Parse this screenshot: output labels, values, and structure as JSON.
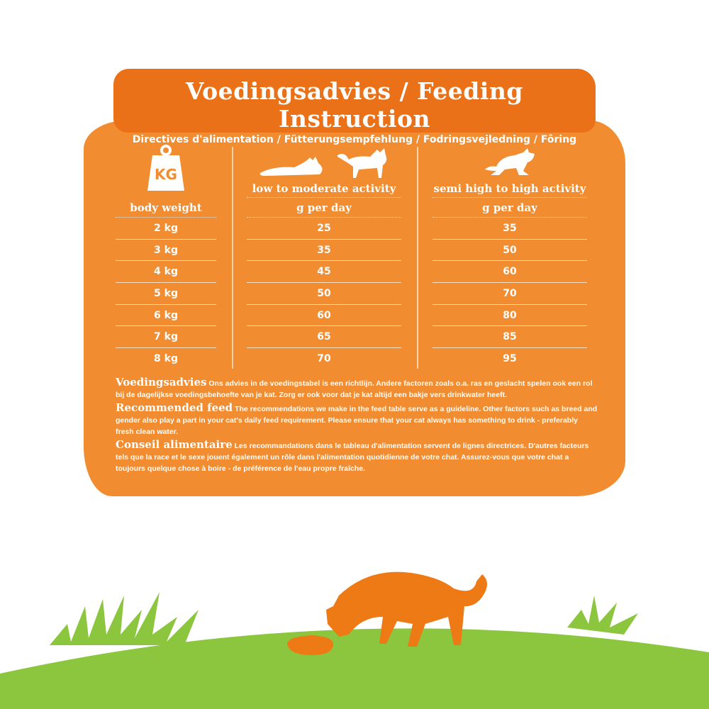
{
  "header": {
    "title": "Voedingsadvies / Feeding Instruction",
    "subtitle": "Directives d'alimentation / Fütterungsempfehlung / Fodringsvejledning / Fôring"
  },
  "table": {
    "weight_icon_label": "KG",
    "columns": [
      {
        "activity": "",
        "header": "body weight",
        "values": [
          "2 kg",
          "3 kg",
          "4 kg",
          "5 kg",
          "6 kg",
          "7 kg",
          "8 kg"
        ]
      },
      {
        "activity": "low to moderate activity",
        "header": "g per day",
        "values": [
          "25",
          "35",
          "45",
          "50",
          "60",
          "65",
          "70"
        ]
      },
      {
        "activity": "semi high to high activity",
        "header": "g per day",
        "values": [
          "35",
          "50",
          "60",
          "70",
          "80",
          "85",
          "95"
        ]
      }
    ]
  },
  "notes": [
    {
      "heading": "Voedingsadvies",
      "text": "Ons advies in de voedingstabel is een richtlijn. Andere factoren zoals o.a. ras en geslacht spelen ook een rol bij de dagelijkse voedingsbehoefte van je kat. Zorg er ook voor dat je kat altijd een bakje vers drinkwater heeft."
    },
    {
      "heading": "Recommended feed",
      "text": "The recommendations we make in the feed table serve as a guideline. Other factors such as breed and gender also play a part in your cat's daily feed requirement. Please ensure that your cat always has something to drink - preferably fresh clean water."
    },
    {
      "heading": "Conseil alimentaire",
      "text": "Les recommandations dans le tableau d'alimentation servent de lignes directrices. D'autres facteurs tels que la race et le sexe jouent également un rôle dans l'alimentation quotidienne de votre chat. Assurez-vous que votre chat a toujours quelque chose à boire - de préférence de l'eau propre fraîche."
    }
  ],
  "colors": {
    "orange": "#F28C30",
    "banner": "#EA7117",
    "grass": "#8CC63F",
    "cat": "#EE7A16"
  }
}
